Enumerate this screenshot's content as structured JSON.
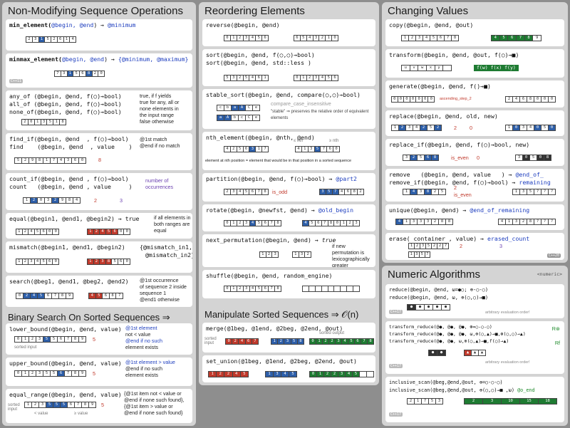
{
  "col1": {
    "title": "Non-Modifying Sequence Operations",
    "min_element": {
      "sig_fn": "min_element(",
      "sig_args": "@begin, @end",
      "sig_close": ")",
      "ret": "@minimum"
    },
    "minmax_element": {
      "sig_fn": "minmax_element(",
      "sig_args": "@begin, @end",
      "sig_close": ")",
      "ret": "{@minimum, @maximum}",
      "tag": "C++11"
    },
    "any_all_none": {
      "lines": [
        "any_of (@begin, @end, f(○)→bool)",
        "all_of (@begin, @end, f(○)→bool)",
        "none_of(@begin, @end, f(○)→bool)"
      ],
      "notes": [
        "true, if f yields",
        "true for any, all or",
        "none elements in",
        "the input range",
        "false otherwise"
      ]
    },
    "find_if": {
      "line1": "find_if(@begin, @end  , f(○)→bool)",
      "line2": "find    (@begin, @end  , value    )",
      "notes": [
        "@1st match",
        "@end if no match"
      ],
      "value": "8"
    },
    "count_if": {
      "line1": "count_if(@begin, @end , f(○)→bool)",
      "line2": "count   (@begin, @end , value     )",
      "notes": [
        "number of",
        "occurrences"
      ],
      "value": "2",
      "result": "3"
    },
    "equal": {
      "line": "equal(@begin1, @end1, @begin2)",
      "ret": "true",
      "notes": [
        "if all elements in",
        "both ranges are",
        "equal"
      ]
    },
    "mismatch": {
      "line": "mismatch(@begin1, @end1, @begin2)",
      "ret1": "{@mismatch_in1,",
      "ret2": "@mismatch_in2}"
    },
    "search": {
      "line": "search(@beg1, @end1, @beg2, @end2)",
      "notes": [
        "@1st occurrence",
        "of sequence 2 inside",
        "sequence 1",
        "@end1 otherwise"
      ]
    }
  },
  "col1b": {
    "title": "Binary Search On Sorted Sequences ⇒ 𝒪(log n)",
    "lower_bound": {
      "line": "lower_bound(@begin, @end, value)",
      "notes": [
        "@1st element",
        "not < value",
        "@end if no such",
        "element exists"
      ],
      "value": "5",
      "sorted": "sorted input"
    },
    "upper_bound": {
      "line": "upper_bound(@begin, @end, value)",
      "notes": [
        "@1st element > value",
        "@end if no such",
        "element exists"
      ],
      "value": "5"
    },
    "equal_range": {
      "line": "equal_range(@begin, @end, value)",
      "notes": [
        "{@1st item not < value or",
        "@end if none such found},",
        "{@1st item > value or",
        "@end if none such found}"
      ],
      "value": "5",
      "labels": [
        "sorted input",
        "< value",
        "≥ value"
      ]
    }
  },
  "col2": {
    "title": "Reordering Elements",
    "reverse": {
      "line": "reverse(@begin, @end)"
    },
    "sort": {
      "line1": "sort(@begin, @end, f(○,○)→bool)",
      "line2": "sort(@begin, @end, std::less )"
    },
    "stable_sort": {
      "line": "stable_sort(@begin, @end, compare(○,○)→bool)",
      "cmp": "compare_case_insensitive",
      "note": "\"stable\" ⇒ preserves the relative order of equivalent elements"
    },
    "nth_element": {
      "line": "nth_element(@begin, @nth, @end)",
      "note": "element at nth position = element that would be in that position in a sorted sequence",
      "le": "≤ nth",
      "ge": "≥ nth"
    },
    "partition": {
      "line": "partition(@begin, @end, f(○)→bool)",
      "ret": "@part2",
      "pred": "is_odd"
    },
    "rotate": {
      "line": "rotate(@begin, @newfst, @end)",
      "ret": "@old_begin"
    },
    "next_permutation": {
      "line": "next_permutation(@begin, @end)",
      "ret": "true",
      "notes": [
        "if new",
        "permutation is",
        "lexicographically",
        "greater"
      ]
    },
    "shuffle": {
      "line": "shuffle(@begin, @end, random_engine)"
    }
  },
  "col2b": {
    "title": "Manipulate Sorted Sequences ⇒ 𝒪(n)",
    "merge": {
      "line": "merge(@1beg, @1end, @2beg, @2end, @out)",
      "sorted_in": "sorted input",
      "sorted_out": "sorted output"
    },
    "set_union": {
      "line": "set_union(@1beg, @1end, @2beg, @2end, @out)"
    }
  },
  "col3": {
    "title": "Changing Values",
    "copy": {
      "line": "copy(@begin, @end, @out)"
    },
    "transform": {
      "line": "transform(@begin, @end, @out, f(○)→■)",
      "out": "f(w) f(x) f(y)"
    },
    "generate": {
      "line": "generate(@begin, @end, f()→■)",
      "gen": "ascending_step_2"
    },
    "replace": {
      "line": "replace(@begin, @end, old, new)",
      "old": "2",
      "new": "0"
    },
    "replace_if": {
      "line": "replace_if(@begin, @end, f(○)→bool, new)",
      "pred": "is_even",
      "new": "0"
    },
    "remove": {
      "line1": "remove   (@begin, @end, value   )",
      "line2": "remove_if(@begin, @end, f(○)→bool)",
      "ret1": "@end_of_",
      "ret2": "remaining",
      "value": "2",
      "pred": "is_even"
    },
    "unique": {
      "line": "unique(@begin, @end)",
      "ret": "@end_of_remaining"
    },
    "erase": {
      "line": "erase( container , value)",
      "ret": "erased_count",
      "value": "2",
      "count": "3",
      "tag": "C++20"
    }
  },
  "col3b": {
    "title": "Numeric Algorithms",
    "header": "<numeric>",
    "reduce": {
      "line1": "reduce(@begin, @end, ω=●○; ⊕-○-○)",
      "line2": "reduce(@begin, @end, ω, ⊕(○,○)→■)",
      "note": "arbitrary evaluation order!",
      "tag": "C++17"
    },
    "transform_reduce": {
      "line1": "transform_reduce(@●, @●, @●, ⊛=○-○-○)",
      "line2": "transform_reduce(@●, @●, @●, ω,⊕(○,▲)→■,⊛(○,○)→▲)",
      "line3": "transform_reduce(@●, @●, ω,⊕(○,▲)→■,f(○)→▲)",
      "r1": "R⊛",
      "r2": "Rf",
      "note": "arbitrary evaluation order!",
      "tag": "C++17"
    },
    "inclusive_scan": {
      "line1": "inclusive_scan(@beg,@end,@out, ⊕=○-○-○)",
      "line2": "inclusive_scan(@beg,@end,@out, ⊕(○,○)→■ ,ω)",
      "ret": "@o_end",
      "vals": [
        "2",
        "3",
        "10",
        "15",
        "18"
      ],
      "tag": "C++17"
    }
  }
}
